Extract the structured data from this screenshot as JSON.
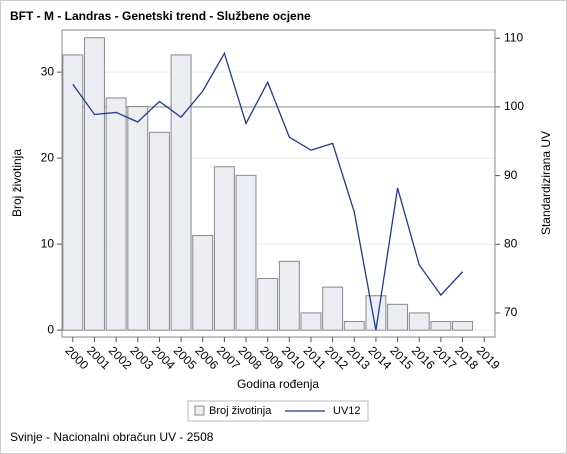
{
  "chart_data": {
    "type": "bar_line",
    "title": "BFT - M - Landras - Genetski trend - Službene ocjene",
    "xlabel": "Godina rođenja",
    "ylabel": "Broj životinja",
    "y2label": "Standardizirana UV",
    "footnote": "Svinje - Nacionalni obračun UV - 2508",
    "categories": [
      "2000",
      "2001",
      "2002",
      "2003",
      "2004",
      "2005",
      "2006",
      "2007",
      "2008",
      "2009",
      "2010",
      "2011",
      "2012",
      "2013",
      "2014",
      "2015",
      "2016",
      "2017",
      "2018",
      "2019"
    ],
    "series": [
      {
        "name": "Broj životinja",
        "type": "bar",
        "color": "#eceef4",
        "values": [
          32,
          34,
          27,
          26,
          23,
          32,
          11,
          19,
          18,
          6,
          8,
          2,
          5,
          1,
          4,
          3,
          2,
          1,
          1,
          null
        ]
      },
      {
        "name": "UV12",
        "type": "line",
        "axis": "y2",
        "color": "#1f3a8a",
        "values": [
          103.3,
          98.9,
          99.2,
          97.8,
          100.8,
          98.5,
          102.3,
          107.8,
          97.6,
          103.6,
          95.6,
          93.7,
          94.7,
          84.7,
          67.5,
          88.2,
          77,
          72.6,
          76,
          null
        ]
      }
    ],
    "ylim": [
      -0.8,
      34.9
    ],
    "yticks": [
      0,
      10,
      20,
      30
    ],
    "y2lim": [
      66.5,
      111.2
    ],
    "y2ticks": [
      70,
      80,
      90,
      100,
      110
    ],
    "y2_reference": 100,
    "grid": true,
    "legend": "bottom"
  }
}
